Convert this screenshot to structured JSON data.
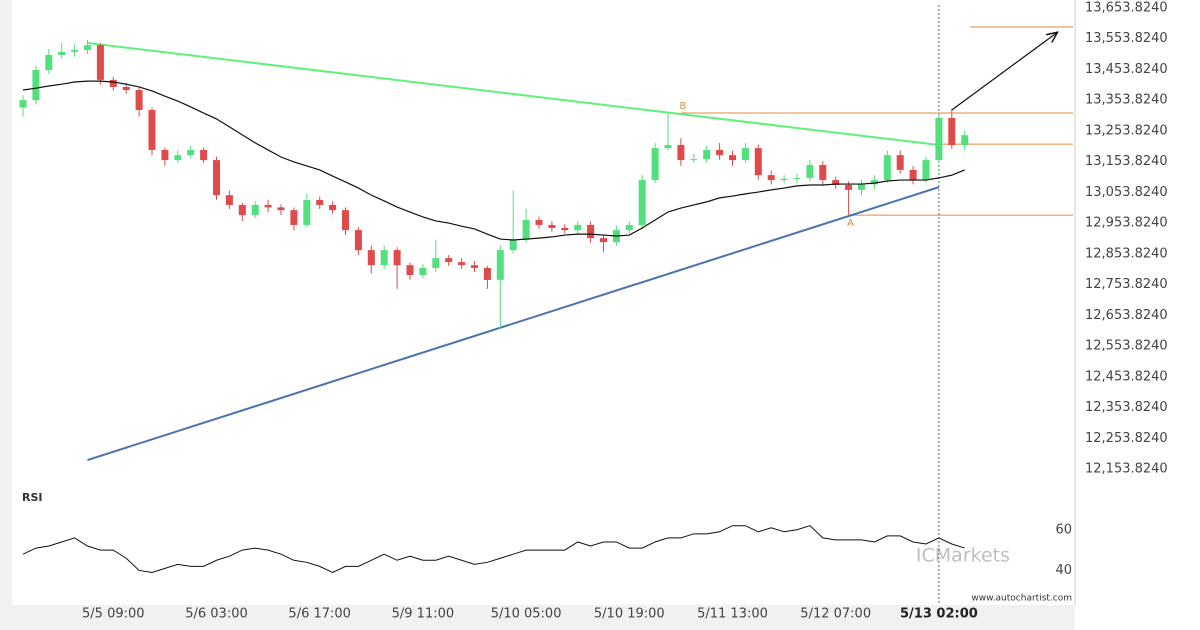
{
  "chart_data": [
    {
      "type": "candlestick",
      "categories": [
        null,
        null,
        null,
        null,
        null,
        null,
        null,
        "5/5 09:00",
        null,
        null,
        null,
        null,
        null,
        null,
        null,
        "5/6 03:00",
        null,
        null,
        null,
        null,
        null,
        null,
        null,
        "5/6 17:00",
        null,
        null,
        null,
        null,
        null,
        null,
        null,
        "5/9 11:00",
        null,
        null,
        null,
        null,
        null,
        null,
        null,
        "5/10 05:00",
        null,
        null,
        null,
        null,
        null,
        null,
        null,
        "5/10 19:00",
        null,
        null,
        null,
        null,
        null,
        null,
        null,
        "5/11 13:00",
        null,
        null,
        null,
        null,
        null,
        null,
        null,
        "5/12 07:00",
        null,
        null,
        null,
        null,
        null,
        null,
        null,
        "5/13 02:00",
        null,
        null
      ],
      "open": [
        13330,
        13354,
        13452,
        13501,
        13511,
        13517,
        13533,
        13420,
        13397,
        13387,
        13322,
        13192,
        13159,
        13175,
        13192,
        13159,
        13045,
        13013,
        12980,
        13013,
        13005,
        12996,
        12948,
        13029,
        13013,
        12996,
        12931,
        12866,
        12817,
        12866,
        12817,
        12785,
        12808,
        12840,
        12827,
        12817,
        12808,
        12769,
        12866,
        12899,
        12964,
        12948,
        12938,
        12931,
        12948,
        12905,
        12892,
        12931,
        12948,
        13094,
        13198,
        13208,
        13159,
        13162,
        13192,
        13175,
        13159,
        13198,
        13110,
        13094,
        13098,
        13101,
        13143,
        13094,
        13078,
        13062,
        13080,
        13094,
        13175,
        13127,
        13094,
        13159,
        13296,
        13208
      ],
      "high": [
        13370,
        13465,
        13520,
        13540,
        13535,
        13550,
        13540,
        13430,
        13410,
        13395,
        13330,
        13200,
        13190,
        13205,
        13200,
        13170,
        13060,
        13020,
        13025,
        13030,
        13015,
        13005,
        13050,
        13040,
        13025,
        13005,
        12940,
        12880,
        12880,
        12875,
        12825,
        12820,
        12900,
        12850,
        12840,
        12830,
        12815,
        12880,
        13060,
        13000,
        12975,
        12960,
        12950,
        12960,
        12960,
        12915,
        12945,
        12960,
        13110,
        13215,
        13312,
        13230,
        13180,
        13205,
        13215,
        13190,
        13215,
        13210,
        13125,
        13110,
        13115,
        13160,
        13155,
        13105,
        13090,
        13095,
        13110,
        13190,
        13190,
        13140,
        13170,
        13305,
        13325,
        13255
      ],
      "low": [
        13300,
        13340,
        13440,
        13490,
        13495,
        13505,
        13405,
        13385,
        13375,
        13300,
        13175,
        13140,
        13150,
        13165,
        13150,
        13030,
        13000,
        12960,
        12970,
        12990,
        12980,
        12930,
        12940,
        13000,
        12985,
        12915,
        12850,
        12790,
        12805,
        12740,
        12770,
        12775,
        12795,
        12815,
        12805,
        12795,
        12740,
        12610,
        12855,
        12890,
        12935,
        12925,
        12920,
        12920,
        12890,
        12860,
        12880,
        12920,
        12935,
        13085,
        13190,
        13140,
        13150,
        13150,
        13160,
        13140,
        13150,
        13095,
        13080,
        13085,
        13085,
        13090,
        13080,
        13065,
        12980,
        13045,
        13065,
        13085,
        13115,
        13080,
        13085,
        13150,
        13195,
        13190
      ],
      "close": [
        13354,
        13452,
        13501,
        13511,
        13517,
        13533,
        13420,
        13397,
        13387,
        13322,
        13192,
        13159,
        13175,
        13192,
        13159,
        13045,
        13013,
        12980,
        13013,
        13005,
        12996,
        12948,
        13029,
        13013,
        12996,
        12931,
        12866,
        12817,
        12866,
        12817,
        12785,
        12808,
        12840,
        12827,
        12817,
        12808,
        12769,
        12866,
        12899,
        12964,
        12948,
        12938,
        12931,
        12948,
        12905,
        12892,
        12931,
        12948,
        13094,
        13198,
        13208,
        13159,
        13162,
        13192,
        13175,
        13159,
        13198,
        13110,
        13094,
        13098,
        13101,
        13143,
        13094,
        13078,
        13062,
        13080,
        13094,
        13175,
        13127,
        13094,
        13159,
        13296,
        13208,
        13240
      ],
      "up_color": "#52e07c",
      "down_color": "#e04a4a",
      "ma": {
        "color": "#111111",
        "values": [
          13387,
          13393,
          13400,
          13406,
          13413,
          13416,
          13416,
          13413,
          13406,
          13397,
          13384,
          13367,
          13351,
          13332,
          13312,
          13293,
          13267,
          13241,
          13215,
          13192,
          13169,
          13153,
          13140,
          13127,
          13107,
          13088,
          13068,
          13045,
          13026,
          13006,
          12990,
          12974,
          12961,
          12954,
          12944,
          12935,
          12918,
          12902,
          12899,
          12902,
          12905,
          12909,
          12915,
          12918,
          12918,
          12915,
          12912,
          12915,
          12938,
          12964,
          12990,
          13003,
          13013,
          13023,
          13036,
          13042,
          13049,
          13055,
          13062,
          13068,
          13075,
          13078,
          13078,
          13081,
          13081,
          13081,
          13084,
          13091,
          13094,
          13094,
          13094,
          13101,
          13110,
          13127
        ]
      },
      "ylim": [
        12101.76,
        13679.85
      ],
      "yticks": [
        {
          "value": 12153.824,
          "label": "12,153.8240"
        },
        {
          "value": 12253.824,
          "label": "12,253.8240"
        },
        {
          "value": 12353.824,
          "label": "12,353.8240"
        },
        {
          "value": 12453.824,
          "label": "12,453.8240"
        },
        {
          "value": 12553.824,
          "label": "12,553.8240"
        },
        {
          "value": 12653.824,
          "label": "12,653.8240"
        },
        {
          "value": 12753.824,
          "label": "12,753.8240"
        },
        {
          "value": 12853.824,
          "label": "12,853.8240"
        },
        {
          "value": 12953.824,
          "label": "12,953.8240"
        },
        {
          "value": 13053.824,
          "label": "13,053.8240"
        },
        {
          "value": 13153.824,
          "label": "13,153.8240"
        },
        {
          "value": 13253.824,
          "label": "13,253.8240"
        },
        {
          "value": 13353.824,
          "label": "13,353.8240"
        },
        {
          "value": 13453.824,
          "label": "13,453.8240"
        },
        {
          "value": 13553.824,
          "label": "13,553.8240"
        },
        {
          "value": 13653.824,
          "label": "13,653.8240"
        }
      ],
      "trendlines": [
        {
          "x": [
            5,
            71
          ],
          "y": [
            13540,
            13208
          ],
          "color": "#5ef27a"
        },
        {
          "x": [
            5,
            71
          ],
          "y": [
            12183,
            13071
          ],
          "color": "#4a72b0"
        }
      ],
      "levels": [
        {
          "value": 13592,
          "from": 73.4
        },
        {
          "value": 13312,
          "from": 51
        },
        {
          "value": 13211,
          "from": 71
        },
        {
          "value": 12980,
          "from": 64
        }
      ],
      "level_color": "#e08a3c",
      "arrow": {
        "x": [
          72,
          80.2
        ],
        "y": [
          13322,
          13575
        ]
      },
      "points": [
        {
          "label": "B",
          "x": 51,
          "y": 13312
        },
        {
          "label": "A",
          "x": 64,
          "y": 12980
        }
      ],
      "current_x": 71
    },
    {
      "type": "line",
      "title": "RSI",
      "color": "#111111",
      "values": [
        48,
        51,
        52,
        54,
        56,
        52,
        50,
        50,
        46,
        40,
        39,
        41,
        43,
        42,
        42,
        45,
        47,
        50,
        51,
        50,
        48,
        45,
        44,
        42,
        39,
        42,
        42,
        45,
        48,
        45,
        47,
        45,
        45,
        47,
        45,
        43,
        44,
        46,
        48,
        50,
        50,
        50,
        50,
        54,
        52,
        54,
        54,
        51,
        51,
        54,
        56,
        56,
        58,
        58,
        59,
        62,
        62,
        59,
        61,
        59,
        60,
        62,
        56,
        55,
        55,
        55,
        54,
        57,
        57,
        54,
        53,
        56,
        53,
        51
      ],
      "ylim": [
        24,
        82
      ],
      "yticks": [
        40,
        60
      ]
    }
  ],
  "footer": {
    "brand": "ICMarkets",
    "site": "www.autochartist.com"
  }
}
